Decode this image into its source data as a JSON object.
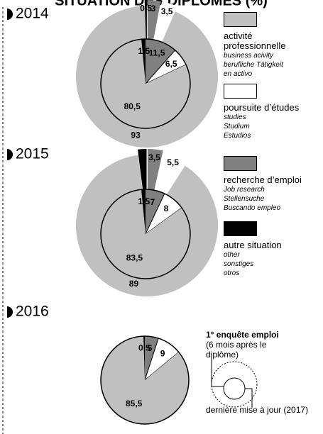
{
  "title": "SITUATION DES DIPLÔMES (%)",
  "legend": [
    {
      "name": "activité professionnelle",
      "translations": [
        "business acivity",
        "berufliche Tätigkeit",
        "en activo"
      ],
      "color": "#c0c0c0"
    },
    {
      "name": "poursuite d’études",
      "translations": [
        "studies",
        "Studium",
        "Estudios"
      ],
      "color": "#ffffff"
    },
    {
      "name": "recherche d’emploi",
      "translations": [
        "Job research",
        "Stellensuche",
        "Buscando empleo"
      ],
      "color": "#808080"
    },
    {
      "name": "autre situation",
      "translations": [
        "other",
        "sonstiges",
        "otros"
      ],
      "color": "#000000"
    }
  ],
  "key": {
    "title": "1° enquête emploi",
    "subtitle": "(6 mois après le diplôme)",
    "outer_label": "dernière mise à jour (2017)"
  },
  "chart_data": [
    {
      "type": "pie",
      "title": "2014",
      "inner": {
        "values": [
          80.5,
          6.5,
          11.5,
          1.5
        ],
        "value_labels": [
          "80,5",
          "6,5",
          "11,5",
          "1,5"
        ]
      },
      "outer": {
        "values": [
          93,
          3.5,
          3,
          0.5
        ],
        "value_labels": [
          "93",
          "3,5",
          "3",
          "0,5"
        ]
      }
    },
    {
      "type": "pie",
      "title": "2015",
      "inner": {
        "values": [
          83.5,
          8,
          7,
          1.5
        ],
        "value_labels": [
          "83,5",
          "8",
          "7",
          "1,5"
        ]
      },
      "outer": {
        "values": [
          89,
          5.5,
          3.5,
          2
        ],
        "value_labels": [
          "89",
          "5,5",
          "3,5",
          "2"
        ]
      }
    },
    {
      "type": "pie",
      "title": "2016",
      "inner": {
        "values": [
          85.5,
          9,
          5,
          0.5
        ],
        "value_labels": [
          "85,5",
          "9",
          "5",
          "0,5"
        ]
      }
    }
  ]
}
